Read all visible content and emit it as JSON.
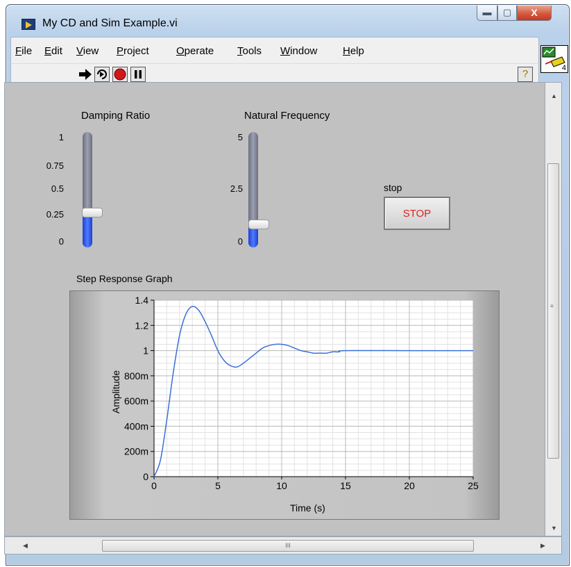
{
  "window": {
    "title": "My CD and Sim Example.vi",
    "buttons": {
      "minimize": "▬",
      "maximize": "▢",
      "close": "X"
    }
  },
  "menu": [
    "File",
    "Edit",
    "View",
    "Project",
    "Operate",
    "Tools",
    "Window",
    "Help"
  ],
  "toolbar": {
    "run_icon": "run-arrow-icon",
    "run_continuously_icon": "run-continuously-icon",
    "abort_icon": "abort-icon",
    "pause_icon": "pause-icon",
    "help_label": "?",
    "vi_icon_number": "4"
  },
  "controls": {
    "damping": {
      "label": "Damping Ratio",
      "ticks": [
        "1",
        "0.75",
        "0.5",
        "0.25",
        "0"
      ],
      "min": 0,
      "max": 1,
      "value": 0.3
    },
    "frequency": {
      "label": "Natural Frequency",
      "ticks": [
        "5",
        "2.5",
        "0"
      ],
      "min": 0,
      "max": 5,
      "value": 1
    },
    "stop": {
      "label": "stop",
      "button_text": "STOP"
    }
  },
  "graph": {
    "label": "Step Response Graph",
    "scrollbar_grip": "III"
  },
  "chart_data": {
    "type": "line",
    "xlabel": "Time (s)",
    "ylabel": "Amplitude",
    "xlim": [
      0,
      25
    ],
    "ylim": [
      0,
      1.4
    ],
    "x_ticks": [
      "0",
      "5",
      "10",
      "15",
      "20",
      "25"
    ],
    "y_ticks": [
      "0",
      "200m",
      "400m",
      "600m",
      "800m",
      "1",
      "1.2",
      "1.4"
    ],
    "grid": true,
    "series": [
      {
        "color": "#3b6fd8",
        "x": [
          0,
          0.5,
          1,
          1.5,
          2,
          2.5,
          3,
          3.5,
          4,
          4.5,
          5,
          5.5,
          6,
          6.5,
          7,
          7.5,
          8,
          8.5,
          9,
          9.5,
          10,
          10.5,
          11,
          11.5,
          12,
          12.5,
          13,
          13.5,
          14,
          14.5,
          15,
          20,
          25
        ],
        "y": [
          0,
          0.13,
          0.45,
          0.82,
          1.12,
          1.29,
          1.35,
          1.32,
          1.23,
          1.12,
          1.0,
          0.92,
          0.88,
          0.87,
          0.9,
          0.94,
          0.98,
          1.02,
          1.04,
          1.05,
          1.05,
          1.04,
          1.02,
          1.0,
          0.99,
          0.98,
          0.98,
          0.98,
          0.99,
          0.99,
          1.0,
          1.0,
          1.0
        ]
      }
    ]
  }
}
